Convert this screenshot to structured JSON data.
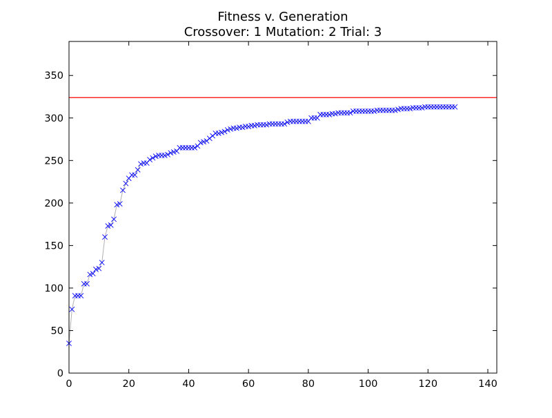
{
  "chart_data": {
    "type": "scatter",
    "title": "Fitness v. Generation",
    "subtitle": "Crossover: 1 Mutation: 2 Trial: 3",
    "xlabel": "",
    "ylabel": "",
    "xlim": [
      0,
      143
    ],
    "ylim": [
      0,
      390
    ],
    "xticks": [
      0,
      20,
      40,
      60,
      80,
      100,
      120,
      140
    ],
    "yticks": [
      0,
      50,
      100,
      150,
      200,
      250,
      300,
      350
    ],
    "grid": false,
    "reference_line": {
      "y": 324,
      "color": "#ff0000"
    },
    "series": [
      {
        "marker": "x",
        "marker_color": "#0000ff",
        "line_color": "#b0b0b0",
        "x": [
          0,
          1,
          2,
          3,
          4,
          5,
          6,
          7,
          8,
          9,
          10,
          11,
          12,
          13,
          14,
          15,
          16,
          17,
          18,
          19,
          20,
          21,
          22,
          23,
          24,
          25,
          26,
          27,
          28,
          29,
          30,
          31,
          32,
          33,
          34,
          35,
          36,
          37,
          38,
          39,
          40,
          41,
          42,
          43,
          44,
          45,
          46,
          47,
          48,
          49,
          50,
          51,
          52,
          53,
          54,
          55,
          56,
          57,
          58,
          59,
          60,
          61,
          62,
          63,
          64,
          65,
          66,
          67,
          68,
          69,
          70,
          71,
          72,
          73,
          74,
          75,
          76,
          77,
          78,
          79,
          80,
          81,
          82,
          83,
          84,
          85,
          86,
          87,
          88,
          89,
          90,
          91,
          92,
          93,
          94,
          95,
          96,
          97,
          98,
          99,
          100,
          101,
          102,
          103,
          104,
          105,
          106,
          107,
          108,
          109,
          110,
          111,
          112,
          113,
          114,
          115,
          116,
          117,
          118,
          119,
          120,
          121,
          122,
          123,
          124,
          125,
          126,
          127,
          128,
          129
        ],
        "y": [
          35,
          75,
          91,
          91,
          91,
          105,
          105,
          116,
          117,
          122,
          123,
          130,
          160,
          173,
          174,
          181,
          198,
          199,
          215,
          223,
          229,
          233,
          233,
          239,
          246,
          247,
          247,
          251,
          253,
          255,
          256,
          256,
          256,
          257,
          259,
          260,
          261,
          265,
          265,
          265,
          265,
          265,
          265,
          267,
          271,
          272,
          273,
          276,
          279,
          282,
          282,
          283,
          284,
          286,
          287,
          288,
          288,
          289,
          289,
          290,
          290,
          291,
          291,
          292,
          292,
          292,
          292,
          293,
          293,
          293,
          293,
          293,
          293,
          295,
          296,
          296,
          296,
          296,
          296,
          296,
          296,
          300,
          300,
          300,
          304,
          304,
          304,
          304,
          305,
          305,
          306,
          306,
          306,
          306,
          306,
          308,
          308,
          308,
          308,
          308,
          308,
          308,
          308,
          309,
          309,
          309,
          309,
          309,
          309,
          309,
          310,
          311,
          311,
          311,
          311,
          312,
          312,
          312,
          312,
          313,
          313,
          313,
          313,
          313,
          313,
          313,
          313,
          313,
          313,
          313
        ]
      }
    ]
  }
}
